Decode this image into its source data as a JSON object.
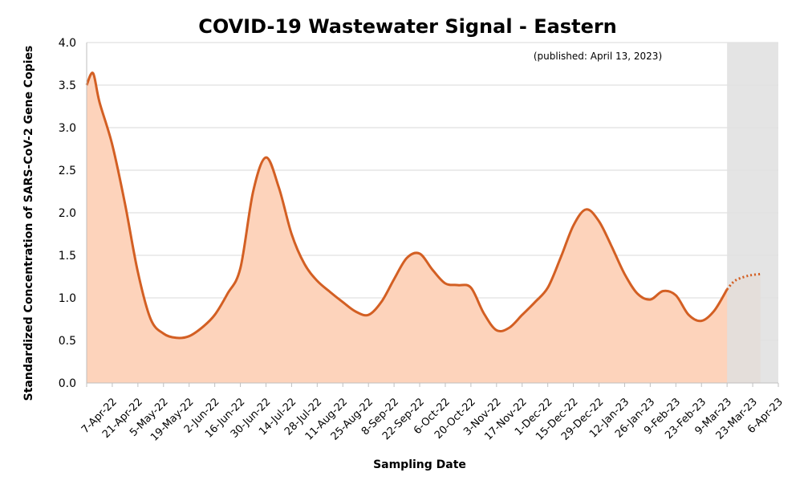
{
  "chart_data": {
    "type": "area",
    "title": "COVID-19 Wastewater Signal - Eastern",
    "annotation": "(published: April 13, 2023)",
    "xlabel": "Sampling Date",
    "ylabel": "Standardized Concentration of SARS-CoV-2 Gene Copies",
    "ylim": [
      0,
      4.0
    ],
    "yticks": [
      "0.0",
      "0.5",
      "1.0",
      "1.5",
      "2.0",
      "2.5",
      "3.0",
      "3.5",
      "4.0"
    ],
    "categories": [
      "7-Apr-22",
      "21-Apr-22",
      "5-May-22",
      "19-May-22",
      "2-Jun-22",
      "16-Jun-22",
      "30-Jun-22",
      "14-Jul-22",
      "28-Jul-22",
      "11-Aug-22",
      "25-Aug-22",
      "8-Sep-22",
      "22-Sep-22",
      "6-Oct-22",
      "20-Oct-22",
      "3-Nov-22",
      "17-Nov-22",
      "1-Dec-22",
      "15-Dec-22",
      "29-Dec-22",
      "12-Jan-23",
      "26-Jan-23",
      "9-Feb-23",
      "23-Feb-23",
      "9-Mar-23",
      "23-Mar-23",
      "6-Apr-23"
    ],
    "grid": true,
    "colors": {
      "line": "#d35f23",
      "fill": "#fdd3bb",
      "shade": "#dfdfdf"
    },
    "series": [
      {
        "values": [
          [
            0,
            3.5
          ],
          [
            0.25,
            3.64
          ],
          [
            0.5,
            3.3
          ],
          [
            1,
            2.8
          ],
          [
            1.5,
            2.1
          ],
          [
            2,
            1.3
          ],
          [
            2.5,
            0.75
          ],
          [
            3,
            0.58
          ],
          [
            3.5,
            0.53
          ],
          [
            4,
            0.55
          ],
          [
            4.5,
            0.65
          ],
          [
            5,
            0.8
          ],
          [
            5.5,
            1.05
          ],
          [
            6,
            1.35
          ],
          [
            6.5,
            2.25
          ],
          [
            7,
            2.65
          ],
          [
            7.5,
            2.3
          ],
          [
            8,
            1.75
          ],
          [
            8.5,
            1.4
          ],
          [
            9,
            1.2
          ],
          [
            9.5,
            1.07
          ],
          [
            10,
            0.95
          ],
          [
            10.5,
            0.84
          ],
          [
            11,
            0.8
          ],
          [
            11.5,
            0.95
          ],
          [
            12,
            1.22
          ],
          [
            12.5,
            1.47
          ],
          [
            13,
            1.52
          ],
          [
            13.5,
            1.33
          ],
          [
            14,
            1.17
          ],
          [
            14.5,
            1.15
          ],
          [
            15,
            1.12
          ],
          [
            15.5,
            0.82
          ],
          [
            16,
            0.62
          ],
          [
            16.5,
            0.65
          ],
          [
            17,
            0.8
          ],
          [
            17.5,
            0.95
          ],
          [
            18,
            1.12
          ],
          [
            18.5,
            1.47
          ],
          [
            19,
            1.85
          ],
          [
            19.5,
            2.04
          ],
          [
            20,
            1.9
          ],
          [
            20.5,
            1.6
          ],
          [
            21,
            1.28
          ],
          [
            21.5,
            1.05
          ],
          [
            22,
            0.98
          ],
          [
            22.5,
            1.08
          ],
          [
            23,
            1.03
          ],
          [
            23.5,
            0.8
          ],
          [
            24,
            0.73
          ],
          [
            24.5,
            0.85
          ],
          [
            25,
            1.1
          ]
        ],
        "projected": [
          [
            25,
            1.1
          ],
          [
            25.3,
            1.2
          ],
          [
            25.7,
            1.25
          ],
          [
            26,
            1.27
          ],
          [
            26.3,
            1.28
          ]
        ]
      }
    ],
    "shaded_region": [
      25,
      27
    ]
  }
}
